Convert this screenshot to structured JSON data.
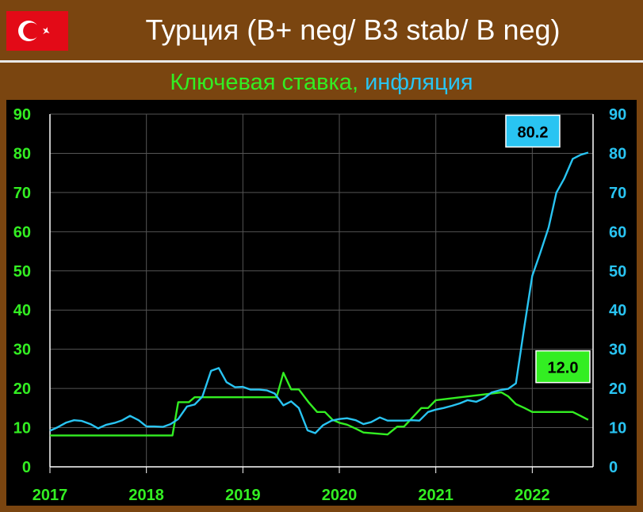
{
  "header": {
    "title": "Турция (B+ neg/ B3 stab/ B neg)",
    "flag": "turkey-flag"
  },
  "subtitle": {
    "green_part": "Ключевая ставка,",
    "blue_part": "инфляция"
  },
  "colors": {
    "background": "#7a4510",
    "plot_bg": "#000000",
    "policy_rate": "#33ee22",
    "inflation": "#29c4f2",
    "left_axis": "#33ee22",
    "right_axis": "#29c4f2",
    "x_axis": "#33ee22",
    "grid": "#555555"
  },
  "chart_data": {
    "type": "line",
    "title": "Ключевая ставка, инфляция",
    "xlabel": "",
    "ylabel": "",
    "xlim": [
      2017.0,
      2022.63
    ],
    "ylim": [
      0,
      90
    ],
    "yticks": [
      "0",
      "10",
      "20",
      "30",
      "40",
      "50",
      "60",
      "70",
      "80",
      "90"
    ],
    "xticks": [
      {
        "x": 2017,
        "label": "2017"
      },
      {
        "x": 2018,
        "label": "2018"
      },
      {
        "x": 2019,
        "label": "2019"
      },
      {
        "x": 2020,
        "label": "2020"
      },
      {
        "x": 2021,
        "label": "2021"
      },
      {
        "x": 2022,
        "label": "2022"
      }
    ],
    "grid": {
      "x": true,
      "y": true
    },
    "series": [
      {
        "key": "policy_rate",
        "color": "#33ee22",
        "last_label": "12.0",
        "points": [
          [
            2017.0,
            8.0
          ],
          [
            2018.27,
            8.0
          ],
          [
            2018.33,
            16.5
          ],
          [
            2018.44,
            16.5
          ],
          [
            2018.5,
            17.75
          ],
          [
            2019.35,
            17.75
          ],
          [
            2019.42,
            24.0
          ],
          [
            2019.5,
            19.75
          ],
          [
            2019.58,
            19.75
          ],
          [
            2019.68,
            16.5
          ],
          [
            2019.77,
            14.0
          ],
          [
            2019.85,
            14.0
          ],
          [
            2019.93,
            12.0
          ],
          [
            2020.0,
            11.25
          ],
          [
            2020.08,
            10.75
          ],
          [
            2020.17,
            9.75
          ],
          [
            2020.25,
            8.75
          ],
          [
            2020.5,
            8.25
          ],
          [
            2020.6,
            10.25
          ],
          [
            2020.67,
            10.25
          ],
          [
            2020.85,
            15.0
          ],
          [
            2020.92,
            15.0
          ],
          [
            2021.0,
            17.0
          ],
          [
            2021.68,
            19.0
          ],
          [
            2021.75,
            18.0
          ],
          [
            2021.83,
            16.0
          ],
          [
            2021.92,
            15.0
          ],
          [
            2022.0,
            14.0
          ],
          [
            2022.42,
            14.0
          ],
          [
            2022.5,
            13.0
          ],
          [
            2022.58,
            12.0
          ]
        ]
      },
      {
        "key": "inflation",
        "color": "#29c4f2",
        "last_label": "80.2",
        "points": [
          [
            2017.0,
            9.2
          ],
          [
            2017.08,
            10.1
          ],
          [
            2017.17,
            11.3
          ],
          [
            2017.25,
            11.9
          ],
          [
            2017.33,
            11.7
          ],
          [
            2017.42,
            10.9
          ],
          [
            2017.5,
            9.8
          ],
          [
            2017.58,
            10.7
          ],
          [
            2017.67,
            11.2
          ],
          [
            2017.75,
            11.9
          ],
          [
            2017.83,
            13.0
          ],
          [
            2017.92,
            11.9
          ],
          [
            2018.0,
            10.3
          ],
          [
            2018.08,
            10.3
          ],
          [
            2018.17,
            10.2
          ],
          [
            2018.25,
            10.9
          ],
          [
            2018.33,
            12.2
          ],
          [
            2018.42,
            15.4
          ],
          [
            2018.5,
            15.9
          ],
          [
            2018.58,
            17.9
          ],
          [
            2018.67,
            24.5
          ],
          [
            2018.75,
            25.2
          ],
          [
            2018.83,
            21.6
          ],
          [
            2018.92,
            20.3
          ],
          [
            2019.0,
            20.4
          ],
          [
            2019.08,
            19.7
          ],
          [
            2019.17,
            19.7
          ],
          [
            2019.25,
            19.5
          ],
          [
            2019.33,
            18.7
          ],
          [
            2019.42,
            15.7
          ],
          [
            2019.5,
            16.7
          ],
          [
            2019.58,
            15.0
          ],
          [
            2019.67,
            9.3
          ],
          [
            2019.75,
            8.6
          ],
          [
            2019.83,
            10.6
          ],
          [
            2019.92,
            11.8
          ],
          [
            2020.0,
            12.2
          ],
          [
            2020.08,
            12.4
          ],
          [
            2020.17,
            11.9
          ],
          [
            2020.25,
            10.9
          ],
          [
            2020.33,
            11.4
          ],
          [
            2020.42,
            12.6
          ],
          [
            2020.5,
            11.8
          ],
          [
            2020.58,
            11.8
          ],
          [
            2020.67,
            11.8
          ],
          [
            2020.75,
            11.9
          ],
          [
            2020.83,
            11.8
          ],
          [
            2020.92,
            14.0
          ],
          [
            2021.0,
            14.6
          ],
          [
            2021.08,
            15.0
          ],
          [
            2021.17,
            15.6
          ],
          [
            2021.25,
            16.2
          ],
          [
            2021.33,
            17.0
          ],
          [
            2021.42,
            16.6
          ],
          [
            2021.5,
            17.5
          ],
          [
            2021.58,
            19.0
          ],
          [
            2021.67,
            19.6
          ],
          [
            2021.75,
            19.9
          ],
          [
            2021.83,
            21.3
          ],
          [
            2021.92,
            36.1
          ],
          [
            2022.0,
            48.7
          ],
          [
            2022.08,
            54.4
          ],
          [
            2022.17,
            61.1
          ],
          [
            2022.25,
            70.0
          ],
          [
            2022.33,
            73.5
          ],
          [
            2022.42,
            78.6
          ],
          [
            2022.5,
            79.6
          ],
          [
            2022.58,
            80.2
          ]
        ]
      }
    ]
  }
}
